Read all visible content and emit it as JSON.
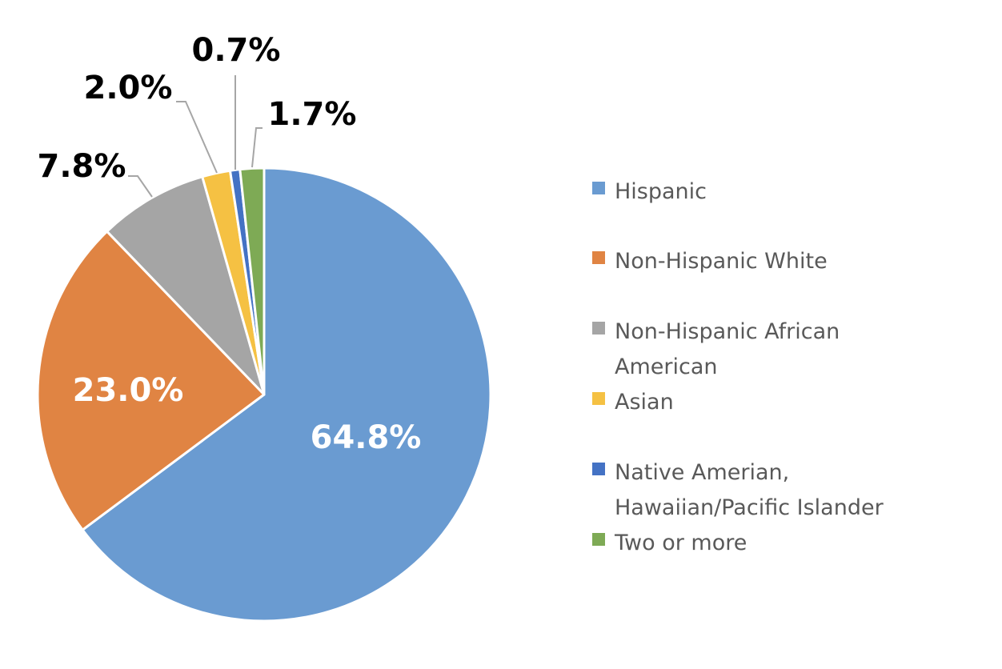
{
  "chart_data": {
    "type": "pie",
    "title": "",
    "start_angle": "12 o'clock, clockwise",
    "legend_position": "right",
    "categories": [
      "Hispanic",
      "Non-Hispanic White",
      "Non-Hispanic African American",
      "Asian",
      "Native Amerian, Hawaiian/Pacific Islander",
      "Two or more"
    ],
    "values": [
      64.8,
      23.0,
      7.8,
      2.0,
      0.7,
      1.7
    ],
    "labels": [
      "64.8%",
      "23.0%",
      "7.8%",
      "2.0%",
      "0.7%",
      "1.7%"
    ],
    "colors": [
      "#6A9BD1",
      "#E08443",
      "#A5A5A5",
      "#F5C143",
      "#4472C4",
      "#7EAA55"
    ]
  },
  "legend": {
    "items": [
      {
        "label": "Hispanic",
        "color": "#6A9BD1"
      },
      {
        "label": "Non-Hispanic White",
        "color": "#E08443"
      },
      {
        "label": "Non-Hispanic African\nAmerican",
        "color": "#A5A5A5"
      },
      {
        "label": "Asian",
        "color": "#F5C143"
      },
      {
        "label": "Native Amerian,\nHawaiian/Pacific Islander",
        "color": "#4472C4"
      },
      {
        "label": "Two or more",
        "color": "#7EAA55"
      }
    ]
  }
}
